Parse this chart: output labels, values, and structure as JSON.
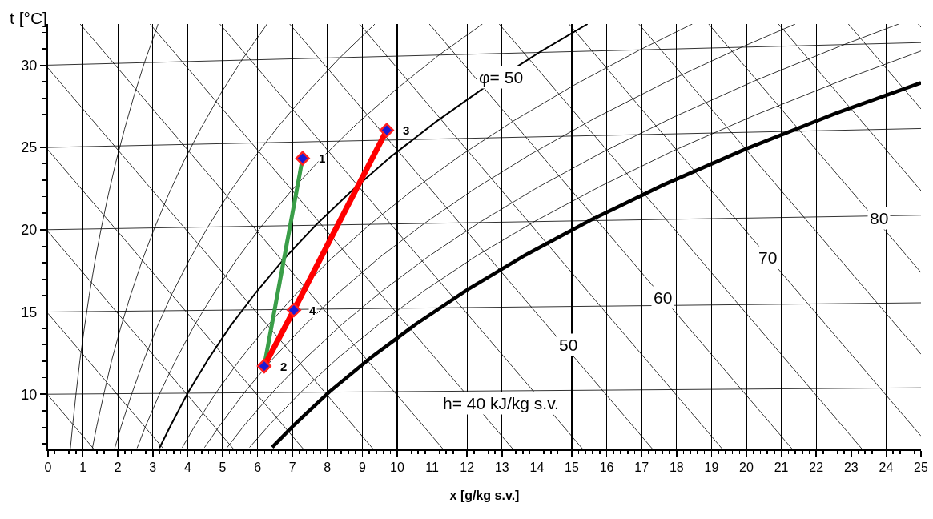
{
  "chart_data": {
    "type": "line",
    "xlabel": "x [g/kg s.v.]",
    "ylabel": "t [°C]",
    "xlim": [
      0,
      25
    ],
    "ylim": [
      6.7,
      32.5
    ],
    "grid": "x",
    "xticks": [
      0,
      1,
      2,
      3,
      4,
      5,
      6,
      7,
      8,
      9,
      10,
      11,
      12,
      13,
      14,
      15,
      16,
      17,
      18,
      19,
      20,
      21,
      22,
      23,
      24,
      25,
      {
        "value": 0.2,
        "label": null
      },
      {
        "value": 0.4,
        "label": null
      },
      {
        "value": 0.6,
        "label": null
      },
      {
        "value": 0.8,
        "label": null
      },
      {
        "value": 1.2,
        "label": null
      },
      {
        "value": 1.4,
        "label": null
      },
      {
        "value": 1.6,
        "label": null
      },
      {
        "value": 1.8,
        "label": null
      },
      {
        "value": 2.2,
        "label": null
      },
      {
        "value": 2.4,
        "label": null
      },
      {
        "value": 2.6,
        "label": null
      },
      {
        "value": 2.8,
        "label": null
      },
      {
        "value": 3.2,
        "label": null
      },
      {
        "value": 3.4,
        "label": null
      },
      {
        "value": 3.6,
        "label": null
      },
      {
        "value": 3.8,
        "label": null
      },
      {
        "value": 4.2,
        "label": null
      },
      {
        "value": 4.4,
        "label": null
      },
      {
        "value": 4.6,
        "label": null
      },
      {
        "value": 4.8,
        "label": null
      },
      {
        "value": 5.2,
        "label": null
      },
      {
        "value": 5.4,
        "label": null
      },
      {
        "value": 5.6,
        "label": null
      },
      {
        "value": 5.8,
        "label": null
      },
      {
        "value": 6.2,
        "label": null
      },
      {
        "value": 6.4,
        "label": null
      },
      {
        "value": 6.6,
        "label": null
      },
      {
        "value": 6.8,
        "label": null
      },
      {
        "value": 7.2,
        "label": null
      },
      {
        "value": 7.4,
        "label": null
      },
      {
        "value": 7.6,
        "label": null
      },
      {
        "value": 7.8,
        "label": null
      },
      {
        "value": 8.2,
        "label": null
      },
      {
        "value": 8.4,
        "label": null
      },
      {
        "value": 8.6,
        "label": null
      },
      {
        "value": 8.8,
        "label": null
      },
      {
        "value": 9.2,
        "label": null
      },
      {
        "value": 9.4,
        "label": null
      },
      {
        "value": 9.6,
        "label": null
      },
      {
        "value": 9.8,
        "label": null
      },
      {
        "value": 10.2,
        "label": null
      },
      {
        "value": 10.4,
        "label": null
      },
      {
        "value": 10.6,
        "label": null
      },
      {
        "value": 10.8,
        "label": null
      },
      {
        "value": 11.2,
        "label": null
      },
      {
        "value": 11.4,
        "label": null
      },
      {
        "value": 11.6,
        "label": null
      },
      {
        "value": 11.8,
        "label": null
      },
      {
        "value": 12.2,
        "label": null
      },
      {
        "value": 12.4,
        "label": null
      },
      {
        "value": 12.6,
        "label": null
      },
      {
        "value": 12.8,
        "label": null
      },
      {
        "value": 13.2,
        "label": null
      },
      {
        "value": 13.4,
        "label": null
      },
      {
        "value": 13.6,
        "label": null
      },
      {
        "value": 13.8,
        "label": null
      },
      {
        "value": 14.2,
        "label": null
      },
      {
        "value": 14.4,
        "label": null
      },
      {
        "value": 14.6,
        "label": null
      },
      {
        "value": 14.8,
        "label": null
      },
      {
        "value": 15.2,
        "label": null
      },
      {
        "value": 15.4,
        "label": null
      },
      {
        "value": 15.6,
        "label": null
      },
      {
        "value": 15.8,
        "label": null
      },
      {
        "value": 16.2,
        "label": null
      },
      {
        "value": 16.4,
        "label": null
      },
      {
        "value": 16.6,
        "label": null
      },
      {
        "value": 16.8,
        "label": null
      },
      {
        "value": 17.2,
        "label": null
      },
      {
        "value": 17.4,
        "label": null
      },
      {
        "value": 17.6,
        "label": null
      },
      {
        "value": 17.8,
        "label": null
      },
      {
        "value": 18.2,
        "label": null
      },
      {
        "value": 18.4,
        "label": null
      },
      {
        "value": 18.6,
        "label": null
      },
      {
        "value": 18.8,
        "label": null
      },
      {
        "value": 19.2,
        "label": null
      },
      {
        "value": 19.4,
        "label": null
      },
      {
        "value": 19.6,
        "label": null
      },
      {
        "value": 19.8,
        "label": null
      },
      {
        "value": 20.2,
        "label": null
      },
      {
        "value": 20.4,
        "label": null
      },
      {
        "value": 20.6,
        "label": null
      },
      {
        "value": 20.8,
        "label": null
      },
      {
        "value": 21.2,
        "label": null
      },
      {
        "value": 21.4,
        "label": null
      },
      {
        "value": 21.6,
        "label": null
      },
      {
        "value": 21.8,
        "label": null
      },
      {
        "value": 22.2,
        "label": null
      },
      {
        "value": 22.4,
        "label": null
      },
      {
        "value": 22.6,
        "label": null
      },
      {
        "value": 22.8,
        "label": null
      },
      {
        "value": 23.2,
        "label": null
      },
      {
        "value": 23.4,
        "label": null
      },
      {
        "value": 23.6,
        "label": null
      },
      {
        "value": 23.8,
        "label": null
      },
      {
        "value": 24.2,
        "label": null
      },
      {
        "value": 24.4,
        "label": null
      },
      {
        "value": 24.6,
        "label": null
      },
      {
        "value": 24.8,
        "label": null
      }
    ],
    "yticks": [
      10,
      15,
      20,
      25,
      30,
      {
        "value": 7,
        "label": null
      },
      {
        "value": 8,
        "label": null
      },
      {
        "value": 9,
        "label": null
      },
      {
        "value": 11,
        "label": null
      },
      {
        "value": 12,
        "label": null
      },
      {
        "value": 13,
        "label": null
      },
      {
        "value": 14,
        "label": null
      },
      {
        "value": 16,
        "label": null
      },
      {
        "value": 17,
        "label": null
      },
      {
        "value": 18,
        "label": null
      },
      {
        "value": 19,
        "label": null
      },
      {
        "value": 21,
        "label": null
      },
      {
        "value": 22,
        "label": null
      },
      {
        "value": 23,
        "label": null
      },
      {
        "value": 24,
        "label": null
      },
      {
        "value": 26,
        "label": null
      },
      {
        "value": 27,
        "label": null
      },
      {
        "value": 28,
        "label": null
      },
      {
        "value": 29,
        "label": null
      },
      {
        "value": 31,
        "label": null
      },
      {
        "value": 32,
        "label": null
      }
    ],
    "series": [
      {
        "color": "#000000",
        "x": [
          0,
          25
        ],
        "values": [
          10,
          10.39
        ]
      },
      {
        "color": "#000000",
        "x": [
          0,
          25
        ],
        "values": [
          15,
          15.56
        ]
      },
      {
        "color": "#000000",
        "x": [
          0,
          25
        ],
        "values": [
          20,
          20.88
        ]
      },
      {
        "color": "#000000",
        "x": [
          0,
          25
        ],
        "values": [
          25,
          26.15
        ]
      },
      {
        "color": "#000000",
        "x": [
          0,
          25
        ],
        "values": [
          30,
          31.37
        ]
      },
      {
        "color": "#000000",
        "x": [
          0,
          1.3
        ],
        "values": [
          9.94,
          6.7
        ]
      },
      {
        "color": "#000000",
        "x": [
          0,
          3.3
        ],
        "values": [
          14.91,
          6.7
        ]
      },
      {
        "color": "#000000",
        "x": [
          0,
          5.3
        ],
        "values": [
          19.88,
          6.7
        ]
      },
      {
        "color": "#000000",
        "x": [
          0,
          7.3
        ],
        "values": [
          24.85,
          6.7
        ]
      },
      {
        "color": "#000000",
        "x": [
          0,
          9.3
        ],
        "values": [
          29.82,
          6.7
        ]
      },
      {
        "color": "#000000",
        "x": [
          0.92,
          11.3
        ],
        "values": [
          32.5,
          6.7
        ]
      },
      {
        "color": "#000000",
        "x": [
          2.92,
          13.3
        ],
        "values": [
          32.5,
          6.7
        ]
      },
      {
        "color": "#000000",
        "x": [
          4.92,
          15.3
        ],
        "values": [
          32.5,
          6.7
        ]
      },
      {
        "color": "#000000",
        "x": [
          6.92,
          17.3
        ],
        "values": [
          32.5,
          6.7
        ]
      },
      {
        "color": "#000000",
        "x": [
          8.92,
          19.3
        ],
        "values": [
          32.5,
          6.7
        ]
      },
      {
        "color": "#000000",
        "x": [
          10.92,
          21.3
        ],
        "values": [
          32.5,
          6.7
        ]
      },
      {
        "color": "#000000",
        "x": [
          12.92,
          23.3
        ],
        "values": [
          32.5,
          6.7
        ]
      },
      {
        "color": "#000000",
        "x": [
          14.92,
          25
        ],
        "values": [
          32.5,
          7.46
        ]
      },
      {
        "color": "#000000",
        "x": [
          16.92,
          25
        ],
        "values": [
          32.5,
          12.43
        ]
      },
      {
        "color": "#000000",
        "x": [
          18.92,
          25
        ],
        "values": [
          32.5,
          17.4
        ]
      },
      {
        "color": "#000000",
        "x": [
          20.92,
          25
        ],
        "values": [
          32.5,
          22.37
        ]
      },
      {
        "color": "#000000",
        "x": [
          22.92,
          25
        ],
        "values": [
          32.5,
          27.34
        ]
      },
      {
        "color": "#000000",
        "x": [
          24.92,
          25
        ],
        "values": [
          32.5,
          32.3
        ]
      },
      {
        "color": "#000000",
        "x": [
          0.64,
          0.7,
          0.8,
          0.91,
          1.04,
          1.18,
          1.34,
          1.52,
          1.72,
          1.94,
          2.19,
          2.46,
          2.76,
          3.1,
          3.15
        ],
        "values": [
          6.71,
          8.01,
          10.01,
          12.02,
          14.03,
          16.03,
          18.04,
          20.06,
          22.07,
          24.09,
          26.11,
          28.13,
          30.15,
          32.18,
          32.5
        ]
      },
      {
        "color": "#000000",
        "x": [
          1.27,
          1.39,
          1.6,
          1.82,
          2.08,
          2.37,
          2.69,
          3.05,
          3.45,
          3.89,
          4.39,
          4.94,
          5.55,
          6.23,
          6.27
        ],
        "values": [
          6.72,
          8.02,
          10.03,
          12.04,
          14.05,
          16.07,
          18.09,
          20.11,
          22.14,
          24.17,
          26.21,
          28.26,
          30.31,
          32.37,
          32.5
        ]
      },
      {
        "color": "#000000",
        "x": [
          1.91,
          2.09,
          2.4,
          2.74,
          3.12,
          3.55,
          4.04,
          4.58,
          5.18,
          5.86,
          6.61,
          7.44,
          8.36,
          9.36
        ],
        "values": [
          6.72,
          8.03,
          10.04,
          12.06,
          14.08,
          16.11,
          18.13,
          20.17,
          22.21,
          24.26,
          26.32,
          28.39,
          30.46,
          32.5
        ]
      },
      {
        "color": "#000000",
        "x": [
          2.55,
          2.79,
          3.2,
          3.66,
          4.17,
          4.75,
          5.4,
          6.12,
          6.93,
          7.83,
          8.84,
          9.96,
          11.2,
          12.44
        ],
        "values": [
          6.73,
          8.04,
          10.06,
          12.08,
          14.11,
          16.14,
          18.18,
          20.23,
          22.28,
          24.35,
          26.43,
          28.52,
          30.62,
          32.5
        ]
      },
      {
        "color": "#000000",
        "x": [
          3.19,
          3.5,
          4,
          4.58,
          5.22,
          5.95,
          6.76,
          7.67,
          8.69,
          9.82,
          11.09,
          12.5,
          14.07,
          15.45
        ],
        "values": [
          6.74,
          8.05,
          10.07,
          12.1,
          14.14,
          16.18,
          18.23,
          20.28,
          22.35,
          24.44,
          26.53,
          28.65,
          30.78,
          32.5
        ]
      },
      {
        "color": "#000000",
        "x": [
          3.84,
          4.2,
          4.81,
          5.5,
          6.28,
          7.15,
          8.13,
          9.23,
          10.46,
          11.82,
          13.35,
          15.06,
          16.96,
          18.45
        ],
        "values": [
          6.75,
          8.06,
          10.09,
          12.12,
          14.16,
          16.21,
          18.27,
          20.34,
          22.43,
          24.52,
          26.64,
          28.78,
          30.94,
          32.5
        ]
      },
      {
        "color": "#000000",
        "x": [
          4.48,
          4.91,
          5.62,
          6.43,
          7.34,
          8.36,
          9.5,
          10.79,
          12.23,
          13.84,
          15.64,
          17.64,
          19.87,
          21.4
        ],
        "values": [
          6.76,
          8.07,
          10.1,
          12.14,
          14.19,
          16.25,
          18.32,
          20.4,
          22.5,
          24.61,
          26.75,
          28.91,
          31.1,
          32.5
        ]
      },
      {
        "color": "#000000",
        "x": [
          5.13,
          5.61,
          6.43,
          7.36,
          8.4,
          9.57,
          10.89,
          12.37,
          14.02,
          15.87,
          17.93,
          20.24,
          22.82,
          24.36
        ],
        "values": [
          6.76,
          8.08,
          10.12,
          12.16,
          14.22,
          16.28,
          18.37,
          20.46,
          22.57,
          24.7,
          26.86,
          29.05,
          31.27,
          32.5
        ]
      },
      {
        "color": "#000000",
        "x": [
          5.77,
          6.32,
          7.24,
          8.29,
          9.47,
          10.79,
          12.27,
          13.95,
          15.82,
          17.91,
          20.25,
          22.86,
          25
        ],
        "values": [
          6.77,
          8.09,
          10.13,
          12.18,
          14.25,
          16.32,
          18.41,
          20.52,
          22.64,
          24.8,
          26.97,
          29.18,
          30.86
        ]
      },
      {
        "color": "#000000",
        "x": [
          6.42,
          7.03,
          8.06,
          9.23,
          10.54,
          12.01,
          13.67,
          15.53,
          17.62,
          19.96,
          22.58,
          25
        ],
        "values": [
          6.78,
          8.1,
          10.15,
          12.2,
          14.27,
          16.36,
          18.46,
          20.57,
          22.72,
          24.89,
          27.09,
          28.93
        ]
      },
      {
        "color": "#3a9e48",
        "x": [
          6.19,
          7.29
        ],
        "values": [
          11.71,
          24.34
        ]
      },
      {
        "color": "#ff0000",
        "x": [
          6.19,
          7.04,
          9.7
        ],
        "values": [
          11.71,
          15.12,
          26.05
        ]
      },
      {
        "type": "scatter",
        "marker": "diamond",
        "color": "#1a1ad6",
        "x": [
          7.29,
          6.19,
          9.7,
          7.04
        ],
        "values": [
          24.34,
          11.71,
          26.05,
          15.12
        ]
      }
    ],
    "annotations": [
      {
        "text": "h= 40 kJ/kg s.v.",
        "x": 12.2,
        "y": 9.44
      },
      {
        "text": "50",
        "x": 14.9,
        "y": 13.0
      },
      {
        "text": "60",
        "x": 17.6,
        "y": 15.9
      },
      {
        "text": "70",
        "x": 20.6,
        "y": 18.3
      },
      {
        "text": "80",
        "x": 23.8,
        "y": 20.7
      },
      {
        "text": "φ= 50",
        "x": 12.96,
        "y": 29.27
      },
      {
        "text": "1",
        "x": 7.29,
        "y": 24.34
      },
      {
        "text": "2",
        "x": 6.19,
        "y": 11.71
      },
      {
        "text": "3",
        "x": 9.7,
        "y": 26.05
      },
      {
        "text": "4",
        "x": 7.04,
        "y": 15.12
      }
    ]
  }
}
